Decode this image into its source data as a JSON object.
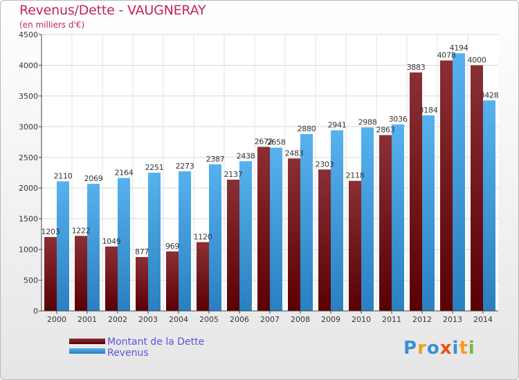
{
  "header": {
    "title": "Revenus/Dette - VAUGNERAY",
    "subtitle": "(en milliers d'€)"
  },
  "colors": {
    "dette": "#6e0f14",
    "revenus": "#3d9de0",
    "title": "#c0245c",
    "legend_text": "#5555dd"
  },
  "chart_data": {
    "type": "bar",
    "title": "Revenus/Dette - VAUGNERAY",
    "ylabel": "(en milliers d'€)",
    "xlabel": "",
    "categories": [
      "2000",
      "2001",
      "2002",
      "2003",
      "2004",
      "2005",
      "2006",
      "2007",
      "2008",
      "2009",
      "2010",
      "2011",
      "2012",
      "2013",
      "2014"
    ],
    "series": [
      {
        "name": "Montant de la Dette",
        "values": [
          1203,
          1222,
          1049,
          877,
          969,
          1120,
          2137,
          2672,
          2483,
          2303,
          2118,
          2863,
          3883,
          4078,
          4000
        ],
        "labels": [
          "1203",
          "1222",
          "1049",
          "877",
          "969",
          "1120",
          "2137",
          "2672",
          "2483",
          "2303",
          "2118",
          "2863",
          "3883",
          "4078",
          "4000"
        ]
      },
      {
        "name": "Revenus",
        "values": [
          2110,
          2069,
          2164,
          2251,
          2273,
          2387,
          2438,
          2658,
          2880,
          2941,
          2988,
          3036,
          3184,
          4194,
          3428
        ],
        "labels": [
          "2110",
          "2069",
          "2164",
          "2251",
          "2273",
          "2387",
          "2438",
          "2658",
          "2880",
          "2941",
          "2988",
          "3036",
          "3184",
          "4194",
          "3428"
        ]
      }
    ],
    "ylim": [
      0,
      4500
    ],
    "yticks": [
      "0",
      "500",
      "1000",
      "1500",
      "2000",
      "2500",
      "3000",
      "3500",
      "4000",
      "4500"
    ],
    "grid": true,
    "legend": "bottom-left"
  },
  "legend": {
    "items": [
      {
        "label": "Montant de la Dette"
      },
      {
        "label": "Revenus"
      }
    ]
  },
  "logo": {
    "letters": [
      "P",
      "r",
      "o",
      "x",
      "i",
      "t",
      "i"
    ],
    "colors": [
      "#3a8fd8",
      "#f0a020",
      "#3a8fd8",
      "#e8501a",
      "#3a8fd8",
      "#f0a020",
      "#7ab648"
    ]
  }
}
